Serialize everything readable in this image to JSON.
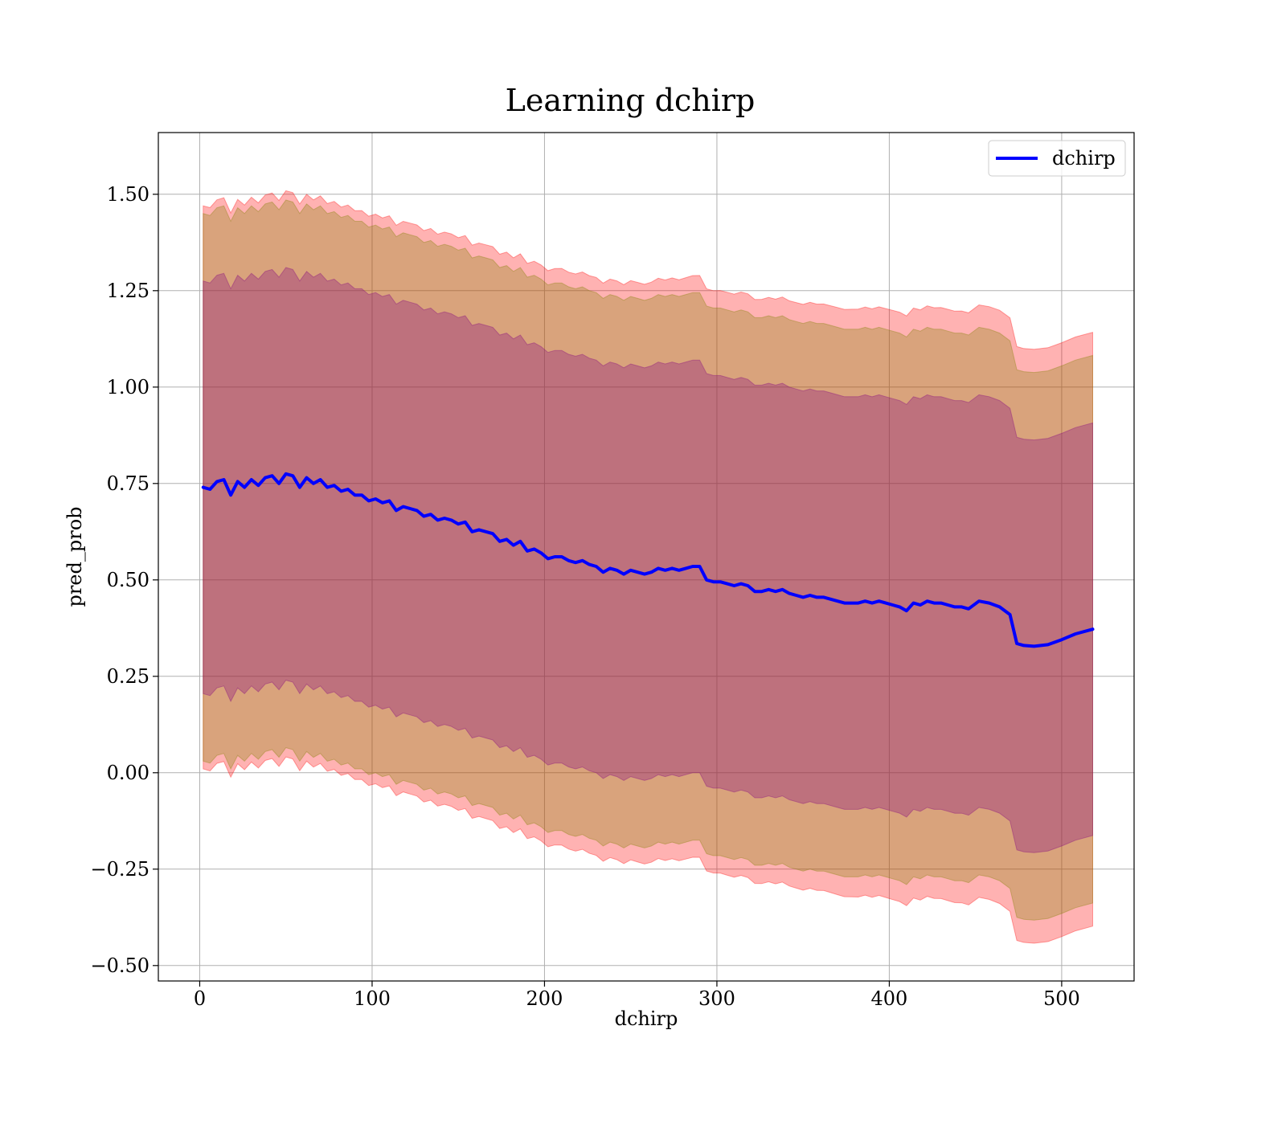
{
  "chart_data": {
    "type": "line",
    "title": "Learning dchirp",
    "xlabel": "dchirp",
    "ylabel": "pred_prob",
    "xlim": [
      -24,
      542
    ],
    "ylim": [
      -0.54,
      1.66
    ],
    "xticks": [
      0,
      100,
      200,
      300,
      400,
      500
    ],
    "xtick_labels": [
      "0",
      "100",
      "200",
      "300",
      "400",
      "500"
    ],
    "yticks": [
      -0.5,
      -0.25,
      0,
      0.25,
      0.5,
      0.75,
      1.0,
      1.25,
      1.5
    ],
    "ytick_labels": [
      "−0.50",
      "−0.25",
      "0.00",
      "0.25",
      "0.50",
      "0.75",
      "1.00",
      "1.25",
      "1.50"
    ],
    "grid": true,
    "legend_position": "upper-right",
    "series": [
      {
        "name": "dchirp",
        "color": "#0000ff",
        "x": [
          2,
          6,
          10,
          14,
          18,
          22,
          26,
          30,
          34,
          38,
          42,
          46,
          50,
          54,
          58,
          62,
          66,
          70,
          74,
          78,
          82,
          86,
          90,
          94,
          98,
          102,
          106,
          110,
          114,
          118,
          122,
          126,
          130,
          134,
          138,
          142,
          146,
          150,
          154,
          158,
          162,
          166,
          170,
          174,
          178,
          182,
          186,
          190,
          194,
          198,
          202,
          206,
          210,
          214,
          218,
          222,
          226,
          230,
          234,
          238,
          242,
          246,
          250,
          254,
          258,
          262,
          266,
          270,
          274,
          278,
          282,
          286,
          290,
          294,
          298,
          302,
          306,
          310,
          314,
          318,
          322,
          326,
          330,
          334,
          338,
          342,
          346,
          350,
          354,
          358,
          362,
          366,
          370,
          374,
          378,
          382,
          386,
          390,
          394,
          398,
          402,
          406,
          410,
          414,
          418,
          422,
          426,
          430,
          434,
          438,
          442,
          446,
          452,
          458,
          464,
          470,
          474,
          478,
          484,
          492,
          500,
          508,
          518
        ],
        "values": [
          0.74,
          0.735,
          0.755,
          0.76,
          0.72,
          0.755,
          0.74,
          0.76,
          0.745,
          0.765,
          0.77,
          0.75,
          0.775,
          0.77,
          0.74,
          0.765,
          0.75,
          0.76,
          0.74,
          0.745,
          0.73,
          0.735,
          0.72,
          0.72,
          0.705,
          0.71,
          0.7,
          0.705,
          0.68,
          0.69,
          0.685,
          0.68,
          0.665,
          0.67,
          0.655,
          0.66,
          0.655,
          0.645,
          0.65,
          0.625,
          0.63,
          0.625,
          0.62,
          0.6,
          0.605,
          0.59,
          0.6,
          0.575,
          0.58,
          0.57,
          0.555,
          0.56,
          0.56,
          0.55,
          0.545,
          0.55,
          0.54,
          0.535,
          0.52,
          0.53,
          0.525,
          0.515,
          0.525,
          0.52,
          0.515,
          0.52,
          0.53,
          0.525,
          0.53,
          0.525,
          0.53,
          0.535,
          0.535,
          0.5,
          0.495,
          0.495,
          0.49,
          0.485,
          0.49,
          0.485,
          0.47,
          0.47,
          0.475,
          0.47,
          0.475,
          0.465,
          0.46,
          0.455,
          0.46,
          0.455,
          0.455,
          0.45,
          0.445,
          0.44,
          0.44,
          0.44,
          0.445,
          0.44,
          0.445,
          0.44,
          0.435,
          0.43,
          0.42,
          0.44,
          0.435,
          0.445,
          0.44,
          0.44,
          0.435,
          0.43,
          0.43,
          0.425,
          0.445,
          0.44,
          0.43,
          0.41,
          0.335,
          0.33,
          0.328,
          0.332,
          0.345,
          0.36,
          0.372
        ]
      }
    ],
    "bands": [
      {
        "color": "#ff0000",
        "opacity": 0.3,
        "half_width": {
          "x": [
            2,
            474,
            518
          ],
          "values": [
            0.73,
            0.77,
            0.77
          ]
        }
      },
      {
        "color": "#808000",
        "opacity": 0.3,
        "half_width": {
          "x": [
            2,
            474,
            518
          ],
          "values": [
            0.71,
            0.71,
            0.71
          ]
        }
      },
      {
        "color": "#800080",
        "opacity": 0.3,
        "half_width": {
          "x": [
            2,
            474,
            518
          ],
          "values": [
            0.535,
            0.535,
            0.535
          ]
        }
      }
    ]
  }
}
